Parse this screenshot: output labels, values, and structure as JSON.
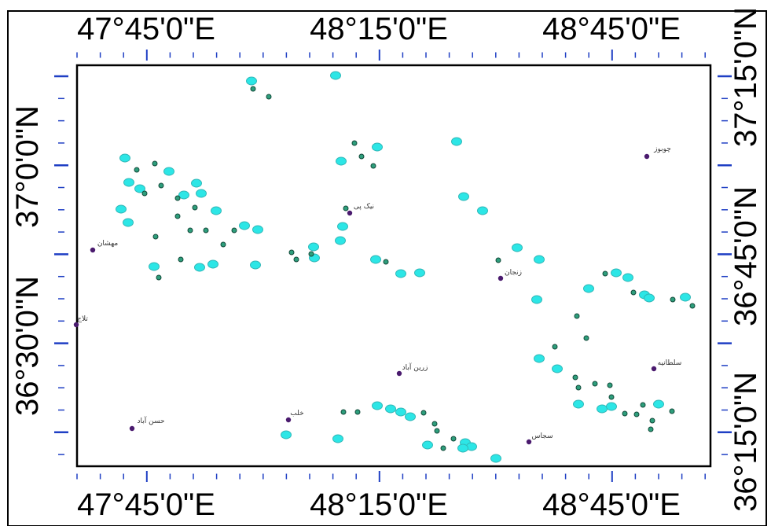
{
  "map": {
    "top_labels": [
      "47°45'0\"E",
      "48°15'0\"E",
      "48°45'0\"E"
    ],
    "bottom_labels": [
      "47°45'0\"E",
      "48°15'0\"E",
      "48°45'0\"E"
    ],
    "left_labels": [
      "37°0'0\"N",
      "36°30'0\"N"
    ],
    "right_labels": [
      "37°15'0\"N",
      "36°45'0\"N",
      "36°15'0\"N"
    ],
    "colors": {
      "frame": "#000000",
      "tick": "#1f3fc4",
      "station": "#2ce6e6",
      "station_outline": "#31b8b8",
      "marker": "#2e9e7c",
      "marker_outline": "#124a3a",
      "city": "#4a1a6e"
    },
    "place_names": [
      "مهشان",
      "تلاج",
      "نیک پی",
      "زنجان",
      "چوبوز",
      "زرین آباد",
      "سلطانیه",
      "خلب",
      "حسن آباد",
      "سجاس"
    ]
  }
}
